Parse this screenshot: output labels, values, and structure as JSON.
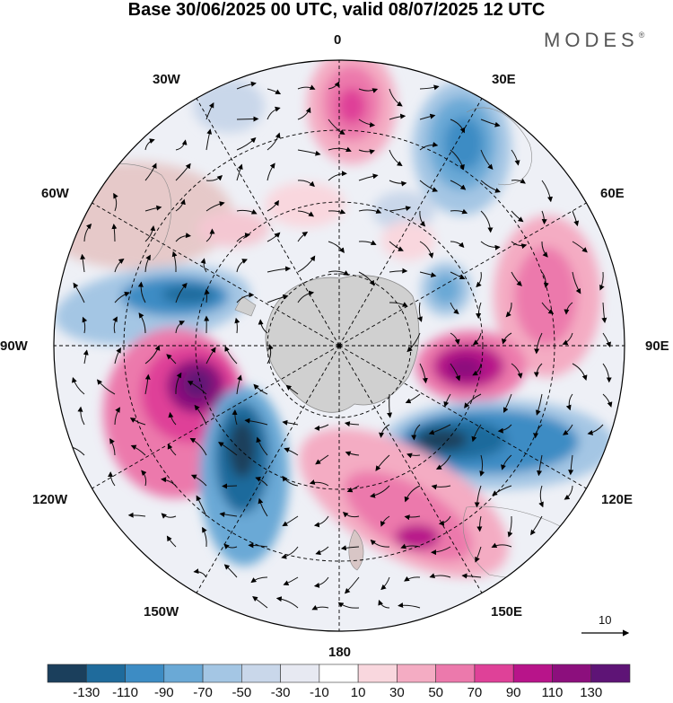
{
  "title": "Base 30/06/2025 00 UTC, valid 08/07/2025 12 UTC",
  "brand": "MODES",
  "brand_mark": "®",
  "longitude_labels": {
    "lon_0": "0",
    "lon_30e": "30E",
    "lon_60e": "60E",
    "lon_90e": "90E",
    "lon_120e": "120E",
    "lon_150e": "150E",
    "lon_180": "180",
    "lon_150w": "150W",
    "lon_120w": "120W",
    "lon_90w": "90W",
    "lon_60w": "60W",
    "lon_30w": "30W"
  },
  "reference_vector": {
    "label": "10"
  },
  "colorbar": {
    "labels": [
      "-130",
      "-110",
      "-90",
      "-70",
      "-50",
      "-30",
      "-10",
      "10",
      "30",
      "50",
      "70",
      "90",
      "110",
      "130"
    ],
    "colors": [
      "#1b3f5c",
      "#1f6b9c",
      "#3d8cc4",
      "#6aa9d6",
      "#a4c6e4",
      "#c9d7ea",
      "#e7e9f2",
      "#ffffff",
      "#f9d7de",
      "#f4acc3",
      "#ec79ac",
      "#df4198",
      "#b8148a",
      "#8c0f7d",
      "#5e1476"
    ]
  },
  "colors": {
    "land": "#d0d0d0",
    "grid": "#000000",
    "background": "#ffffff"
  }
}
